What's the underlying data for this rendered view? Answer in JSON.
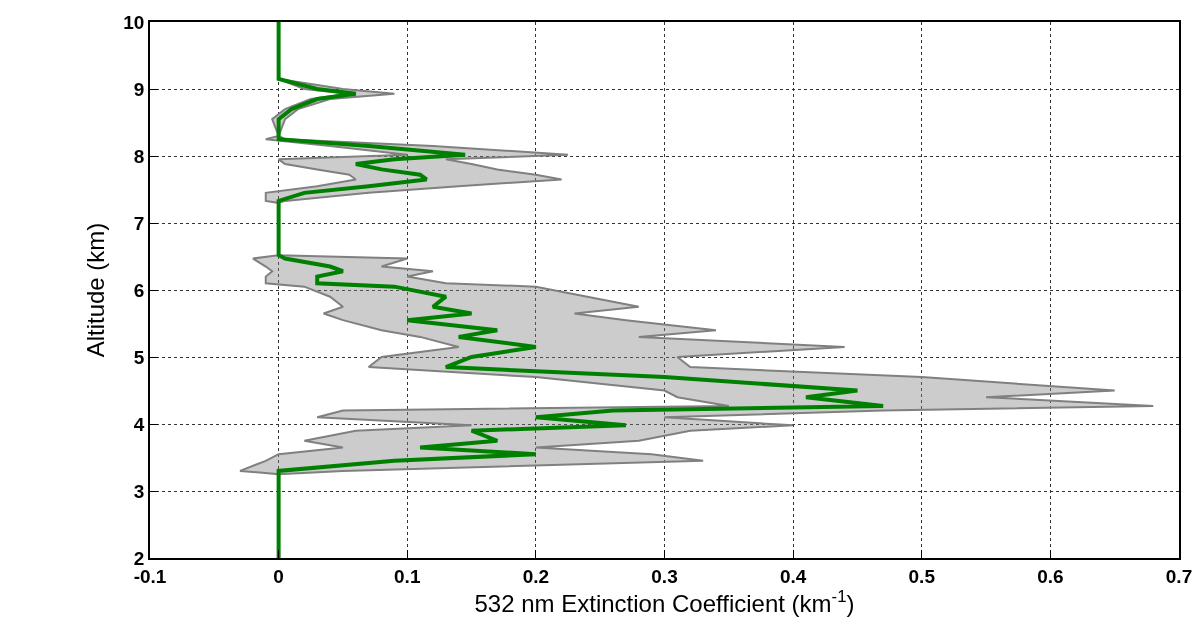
{
  "chart_data": {
    "type": "line",
    "xlabel": "532 nm Extinction Coefficient (km$^{-1}$)",
    "ylabel": "Altitude (km)",
    "xlim": [
      -0.1,
      0.7
    ],
    "xticks": [
      -0.1,
      0,
      0.1,
      0.2,
      0.3,
      0.4,
      0.5,
      0.6,
      0.7
    ],
    "ylim": [
      2,
      10
    ],
    "yticks": [
      2,
      3,
      4,
      5,
      6,
      7,
      8,
      9,
      10
    ],
    "grid": true,
    "line_style": "solid",
    "series": [
      {
        "type": "area",
        "color": "#808080",
        "x": [
          0,
          0,
          0.02,
          0.055,
          0.025,
          0.005,
          -0.005,
          0,
          -0.01,
          0.04,
          0.1,
          0.0,
          0.005,
          0.03,
          0.055,
          0.06,
          0.03,
          -0.01,
          -0.01,
          0,
          0,
          -0.02,
          -0.01,
          -0.005,
          -0.01,
          -0.01,
          0.02,
          0.04,
          0.05,
          0.035,
          0.05,
          0.08,
          0.11,
          0.14,
          0.08,
          0.07,
          0.2,
          0.3,
          0.31,
          0.35,
          0.05,
          0.03,
          0.15,
          0.06,
          0.02,
          0.05,
          0.0,
          -0.01,
          -0.03,
          0,
          0,
          0,
          0.05,
          0.33,
          0.29,
          0.2,
          0.28,
          0.32,
          0.4,
          0.3,
          0.47,
          0.68,
          0.55,
          0.65,
          0.5,
          0.32,
          0.31,
          0.44,
          0.28,
          0.34,
          0.27,
          0.23,
          0.28,
          0.24,
          0.2,
          0.13,
          0.1,
          0.12,
          0.08,
          0.1,
          0,
          0,
          0.005,
          0.07,
          0.14,
          0.22,
          0.2,
          0.17,
          0.15,
          0.13,
          0.225,
          0.12,
          0.005,
          0,
          0.005,
          0.015,
          0.04,
          0.09,
          0.05,
          0,
          0
        ],
        "values": [
          10,
          9.15,
          9.0,
          8.93,
          8.85,
          8.7,
          8.55,
          8.3,
          8.25,
          8.15,
          8.02,
          7.95,
          7.88,
          7.8,
          7.72,
          7.65,
          7.55,
          7.45,
          7.33,
          7.3,
          6.52,
          6.47,
          6.35,
          6.28,
          6.2,
          6.1,
          6.05,
          5.9,
          5.75,
          5.65,
          5.55,
          5.4,
          5.3,
          5.15,
          5.0,
          4.85,
          4.7,
          4.5,
          4.4,
          4.27,
          4.2,
          4.1,
          3.98,
          3.9,
          3.75,
          3.65,
          3.55,
          3.45,
          3.3,
          3.25,
          2,
          3.25,
          3.3,
          3.45,
          3.55,
          3.65,
          3.75,
          3.9,
          3.98,
          4.1,
          4.2,
          4.27,
          4.4,
          4.5,
          4.7,
          4.85,
          5.0,
          5.15,
          5.3,
          5.4,
          5.55,
          5.65,
          5.75,
          5.9,
          6.05,
          6.1,
          6.2,
          6.28,
          6.35,
          6.47,
          6.52,
          7.3,
          7.33,
          7.45,
          7.55,
          7.65,
          7.72,
          7.8,
          7.88,
          7.95,
          8.02,
          8.15,
          8.25,
          8.3,
          8.55,
          8.7,
          8.85,
          8.93,
          9.0,
          9.15,
          10
        ]
      },
      {
        "color": "#008000",
        "x": [
          0,
          0,
          0.03,
          0.06,
          0.03,
          0.01,
          0,
          0,
          0,
          0.07,
          0.145,
          0.09,
          0.06,
          0.08,
          0.11,
          0.115,
          0.07,
          0.02,
          0,
          0,
          0,
          0.005,
          0.04,
          0.05,
          0.03,
          0.03,
          0.09,
          0.13,
          0.12,
          0.15,
          0.1,
          0.17,
          0.14,
          0.2,
          0.15,
          0.13,
          0.3,
          0.45,
          0.41,
          0.47,
          0.26,
          0.2,
          0.27,
          0.15,
          0.17,
          0.11,
          0.2,
          0.09,
          0.0,
          0,
          0
        ],
        "values": [
          10,
          9.15,
          9.0,
          8.93,
          8.85,
          8.7,
          8.55,
          8.3,
          8.25,
          8.15,
          8.02,
          7.95,
          7.88,
          7.8,
          7.72,
          7.65,
          7.55,
          7.45,
          7.33,
          7.3,
          6.52,
          6.47,
          6.35,
          6.28,
          6.2,
          6.1,
          6.05,
          5.9,
          5.75,
          5.65,
          5.55,
          5.4,
          5.3,
          5.15,
          5.0,
          4.85,
          4.7,
          4.5,
          4.4,
          4.27,
          4.2,
          4.1,
          3.98,
          3.9,
          3.75,
          3.65,
          3.55,
          3.45,
          3.3,
          3.25,
          2
        ]
      }
    ]
  }
}
